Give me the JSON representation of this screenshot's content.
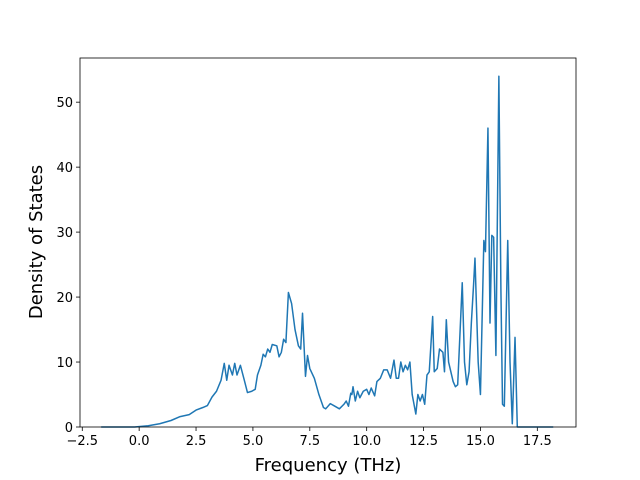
{
  "chart_data": {
    "type": "line",
    "xlabel": "Frequency (THz)",
    "ylabel": "Density of States",
    "color": "#1f77b4",
    "x": [
      -1.67,
      -1.0,
      -0.2,
      0.4,
      0.9,
      1.4,
      1.8,
      2.2,
      2.5,
      2.8,
      3.0,
      3.2,
      3.4,
      3.6,
      3.74,
      3.85,
      3.95,
      4.1,
      4.2,
      4.3,
      4.45,
      4.6,
      4.76,
      4.95,
      5.1,
      5.2,
      5.35,
      5.45,
      5.55,
      5.65,
      5.75,
      5.85,
      6.05,
      6.15,
      6.25,
      6.35,
      6.45,
      6.56,
      6.7,
      6.85,
      7.0,
      7.1,
      7.18,
      7.31,
      7.4,
      7.5,
      7.7,
      7.9,
      8.1,
      8.2,
      8.4,
      8.6,
      8.8,
      9.0,
      9.1,
      9.2,
      9.3,
      9.35,
      9.4,
      9.5,
      9.6,
      9.7,
      9.85,
      10.0,
      10.1,
      10.2,
      10.35,
      10.45,
      10.6,
      10.75,
      10.9,
      11.05,
      11.2,
      11.3,
      11.4,
      11.5,
      11.6,
      11.7,
      11.8,
      11.9,
      12.0,
      12.16,
      12.25,
      12.35,
      12.45,
      12.55,
      12.65,
      12.75,
      12.9,
      12.97,
      13.1,
      13.2,
      13.35,
      13.42,
      13.5,
      13.6,
      13.8,
      13.9,
      14.0,
      14.2,
      14.3,
      14.4,
      14.5,
      14.6,
      14.7,
      14.76,
      14.9,
      15.0,
      15.15,
      15.22,
      15.33,
      15.42,
      15.5,
      15.58,
      15.68,
      15.81,
      15.9,
      15.97,
      16.05,
      16.2,
      16.3,
      16.4,
      16.52,
      16.62,
      17.0,
      18.2
    ],
    "values": [
      0,
      0,
      0,
      0.2,
      0.5,
      1.0,
      1.6,
      1.9,
      2.6,
      3.0,
      3.3,
      4.6,
      5.5,
      7.2,
      9.8,
      7.2,
      9.5,
      8.0,
      9.8,
      8.0,
      9.5,
      7.5,
      5.3,
      5.5,
      5.8,
      8.0,
      9.5,
      11.2,
      10.8,
      12.0,
      11.5,
      12.7,
      12.5,
      10.8,
      11.5,
      13.5,
      13.0,
      20.7,
      19.0,
      15.0,
      12.5,
      12.0,
      17.5,
      7.8,
      11.0,
      9.0,
      7.5,
      5.0,
      3.0,
      2.8,
      3.6,
      3.2,
      2.8,
      3.5,
      4.0,
      3.2,
      5.2,
      5.0,
      6.2,
      4.0,
      5.5,
      4.5,
      5.5,
      5.8,
      5.0,
      6.0,
      4.8,
      7.0,
      7.5,
      8.8,
      8.8,
      7.5,
      10.3,
      7.5,
      7.5,
      10.0,
      8.5,
      9.5,
      8.8,
      10.0,
      5.0,
      2.0,
      5.0,
      4.0,
      5.0,
      3.5,
      8.0,
      8.5,
      17.0,
      8.5,
      9.0,
      12.0,
      11.5,
      8.5,
      16.5,
      10.0,
      7.0,
      6.2,
      6.5,
      22.2,
      10.0,
      6.5,
      8.5,
      16.0,
      22.0,
      26.0,
      10.0,
      5.0,
      28.7,
      27.0,
      46.0,
      16.0,
      29.5,
      29.2,
      11.0,
      54.0,
      21.0,
      3.5,
      3.2,
      28.7,
      10.0,
      0.5,
      13.8,
      0,
      0,
      0
    ],
    "xlim": [
      -2.6,
      19.2
    ],
    "ylim": [
      0,
      56.8
    ],
    "xticks": [
      {
        "value": -2.5,
        "label": "−2.5"
      },
      {
        "value": 0,
        "label": "0.0"
      },
      2.5,
      {
        "value": 5,
        "label": "5.0"
      },
      7.5,
      {
        "value": 10,
        "label": "10.0"
      },
      12.5,
      {
        "value": 15,
        "label": "15.0"
      },
      17.5
    ],
    "yticks": [
      0,
      10,
      20,
      30,
      40,
      50
    ]
  }
}
